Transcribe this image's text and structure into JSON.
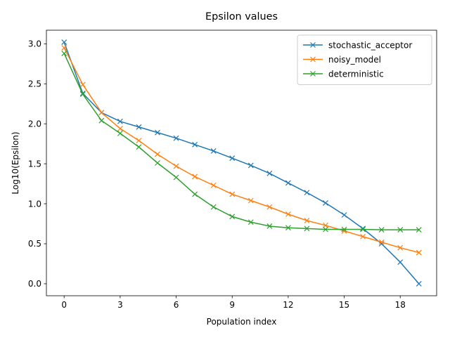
{
  "chart_data": {
    "type": "line",
    "title": "Epsilon values",
    "xlabel": "Population index",
    "ylabel": "Log10(Epsilon)",
    "xlim": [
      -0.95,
      19.95
    ],
    "ylim": [
      -0.15,
      3.17
    ],
    "xticks": [
      0,
      3,
      6,
      9,
      12,
      15,
      18
    ],
    "yticks": [
      0.0,
      0.5,
      1.0,
      1.5,
      2.0,
      2.5,
      3.0
    ],
    "ytick_labels": [
      "0.0",
      "0.5",
      "1.0",
      "1.5",
      "2.0",
      "2.5",
      "3.0"
    ],
    "grid": false,
    "legend_position": "top-right",
    "marker": "x",
    "x": [
      0,
      1,
      2,
      3,
      4,
      5,
      6,
      7,
      8,
      9,
      10,
      11,
      12,
      13,
      14,
      15,
      16,
      17,
      18,
      19
    ],
    "series": [
      {
        "name": "stochastic_acceptor",
        "color": "#1f77b4",
        "values": [
          3.02,
          2.38,
          2.14,
          2.03,
          1.96,
          1.89,
          1.82,
          1.74,
          1.66,
          1.57,
          1.48,
          1.38,
          1.26,
          1.14,
          1.01,
          0.86,
          0.69,
          0.5,
          0.27,
          0.0
        ]
      },
      {
        "name": "noisy_model",
        "color": "#ff7f0e",
        "values": [
          2.95,
          2.49,
          2.14,
          1.94,
          1.79,
          1.62,
          1.47,
          1.34,
          1.23,
          1.12,
          1.04,
          0.96,
          0.87,
          0.79,
          0.73,
          0.66,
          0.59,
          0.52,
          0.45,
          0.39
        ]
      },
      {
        "name": "deterministic",
        "color": "#2ca02c",
        "values": [
          2.88,
          2.37,
          2.04,
          1.88,
          1.71,
          1.51,
          1.33,
          1.12,
          0.96,
          0.84,
          0.77,
          0.72,
          0.7,
          0.69,
          0.68,
          0.68,
          0.68,
          0.675,
          0.675,
          0.675
        ]
      }
    ]
  }
}
